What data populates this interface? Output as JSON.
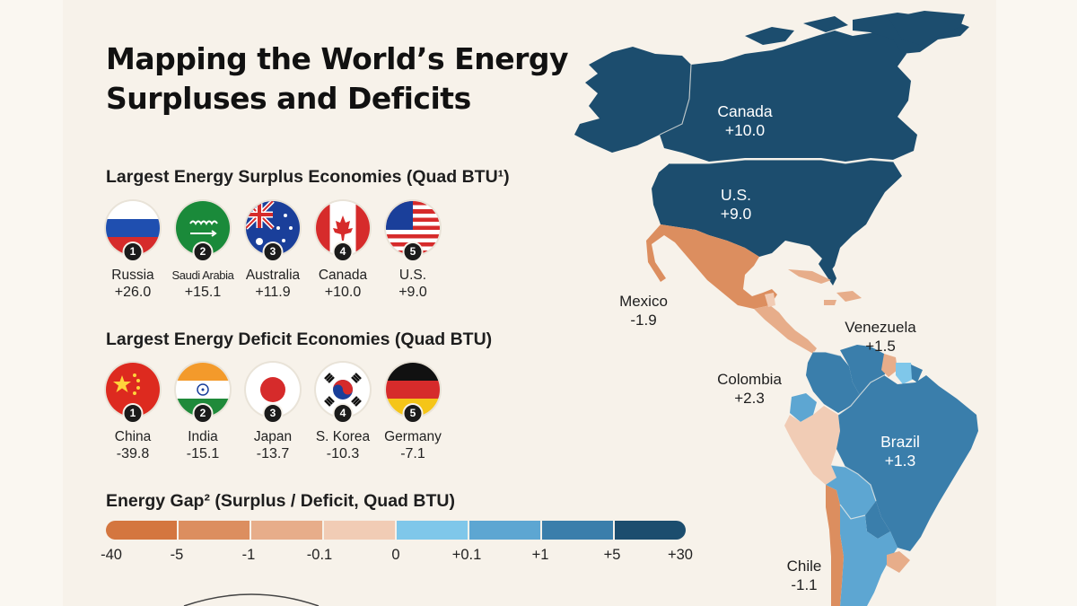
{
  "title": {
    "line1": "Mapping the World’s Energy",
    "line2": "Surpluses and Deficits"
  },
  "surplus": {
    "heading": "Largest Energy Surplus Economies (Quad BTU¹)",
    "items": [
      {
        "rank": "1",
        "name": "Russia",
        "value": "+26.0",
        "flag": "russia-flag"
      },
      {
        "rank": "2",
        "name": "Saudi Arabia",
        "value": "+15.1",
        "flag": "saudi-arabia-flag"
      },
      {
        "rank": "3",
        "name": "Australia",
        "value": "+11.9",
        "flag": "australia-flag"
      },
      {
        "rank": "4",
        "name": "Canada",
        "value": "+10.0",
        "flag": "canada-flag"
      },
      {
        "rank": "5",
        "name": "U.S.",
        "value": "+9.0",
        "flag": "us-flag"
      }
    ]
  },
  "deficit": {
    "heading": "Largest Energy Deficit Economies (Quad BTU)",
    "items": [
      {
        "rank": "1",
        "name": "China",
        "value": "-39.8",
        "flag": "china-flag"
      },
      {
        "rank": "2",
        "name": "India",
        "value": "-15.1",
        "flag": "india-flag"
      },
      {
        "rank": "3",
        "name": "Japan",
        "value": "-13.7",
        "flag": "japan-flag"
      },
      {
        "rank": "4",
        "name": "S. Korea",
        "value": "-10.3",
        "flag": "south-korea-flag"
      },
      {
        "rank": "5",
        "name": "Germany",
        "value": "-7.1",
        "flag": "germany-flag"
      }
    ]
  },
  "legend": {
    "heading": "Energy Gap² (Surplus / Deficit, Quad BTU)",
    "colors": [
      "#d4763f",
      "#dc8e5f",
      "#e7ad8a",
      "#f1ccb5",
      "#7fc7ea",
      "#5da6d2",
      "#3a7eab",
      "#1c4d6e"
    ],
    "ticks": [
      "-40",
      "-5",
      "-1",
      "-0.1",
      "0",
      "+0.1",
      "+1",
      "+5",
      "+30"
    ]
  },
  "map": {
    "colors": {
      "dark_surplus": "#1c4d6e",
      "mid_surplus": "#3a7eab",
      "light_surplus": "#5da6d2",
      "lightest_surplus": "#7fc7ea",
      "strong_deficit": "#dc8e5f",
      "mid_deficit": "#e7ad8a",
      "light_deficit": "#f1ccb5",
      "border": "#f7f2ea"
    },
    "labels": [
      {
        "id": "canada",
        "name": "Canada",
        "value": "+10.0"
      },
      {
        "id": "us",
        "name": "U.S.",
        "value": "+9.0"
      },
      {
        "id": "mexico",
        "name": "Mexico",
        "value": "-1.9"
      },
      {
        "id": "venezuela",
        "name": "Venezuela",
        "value": "+1.5"
      },
      {
        "id": "colombia",
        "name": "Colombia",
        "value": "+2.3"
      },
      {
        "id": "brazil",
        "name": "Brazil",
        "value": "+1.3"
      },
      {
        "id": "chile",
        "name": "Chile",
        "value": "-1.1"
      }
    ]
  }
}
